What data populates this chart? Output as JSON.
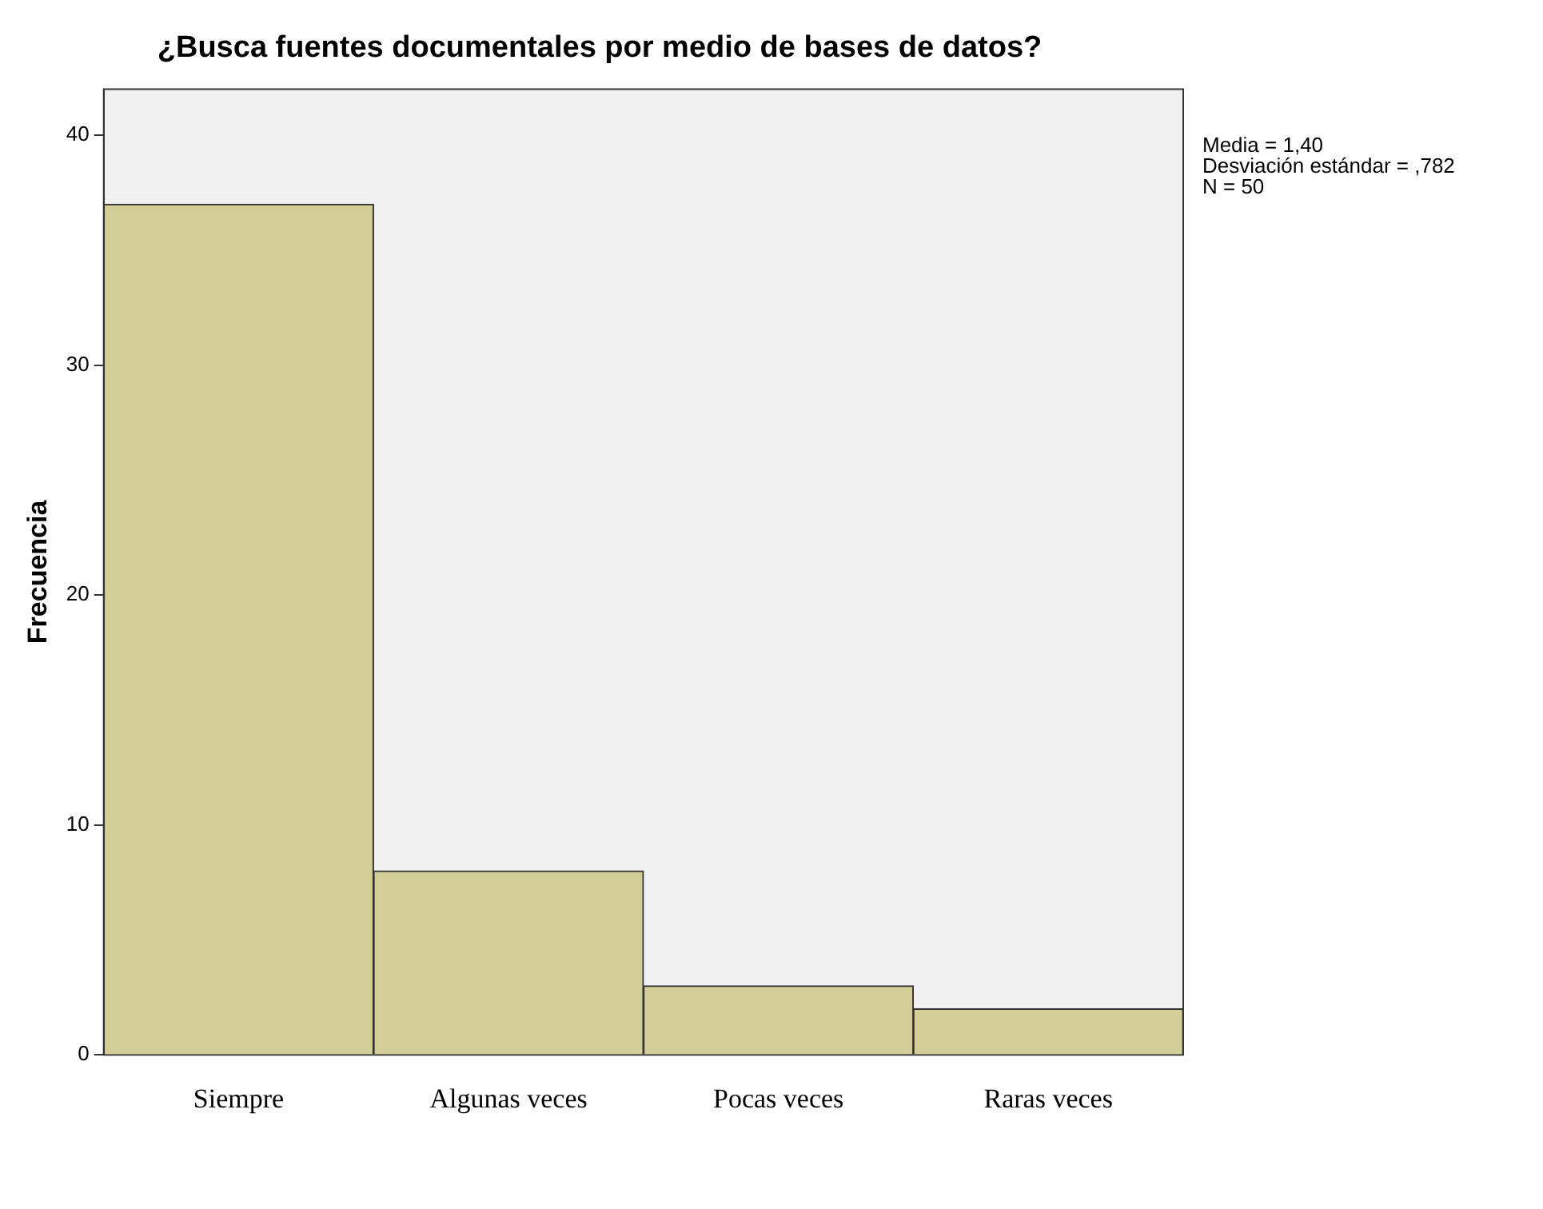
{
  "chart_data": {
    "type": "bar",
    "title": "¿Busca fuentes documentales por medio de bases de datos?",
    "ylabel": "Frecuencia",
    "categories": [
      "Siempre",
      "Algunas veces",
      "Pocas veces",
      "Raras veces"
    ],
    "values": [
      37,
      8,
      3,
      2
    ],
    "color": "#d3cd97",
    "ylim": [
      0,
      42
    ],
    "yticks": [
      0,
      10,
      20,
      30,
      40
    ],
    "grid": false,
    "legend": false,
    "annotations": [
      "Media = 1,40",
      "Desviación estándar = ,782",
      "N = 50"
    ]
  }
}
